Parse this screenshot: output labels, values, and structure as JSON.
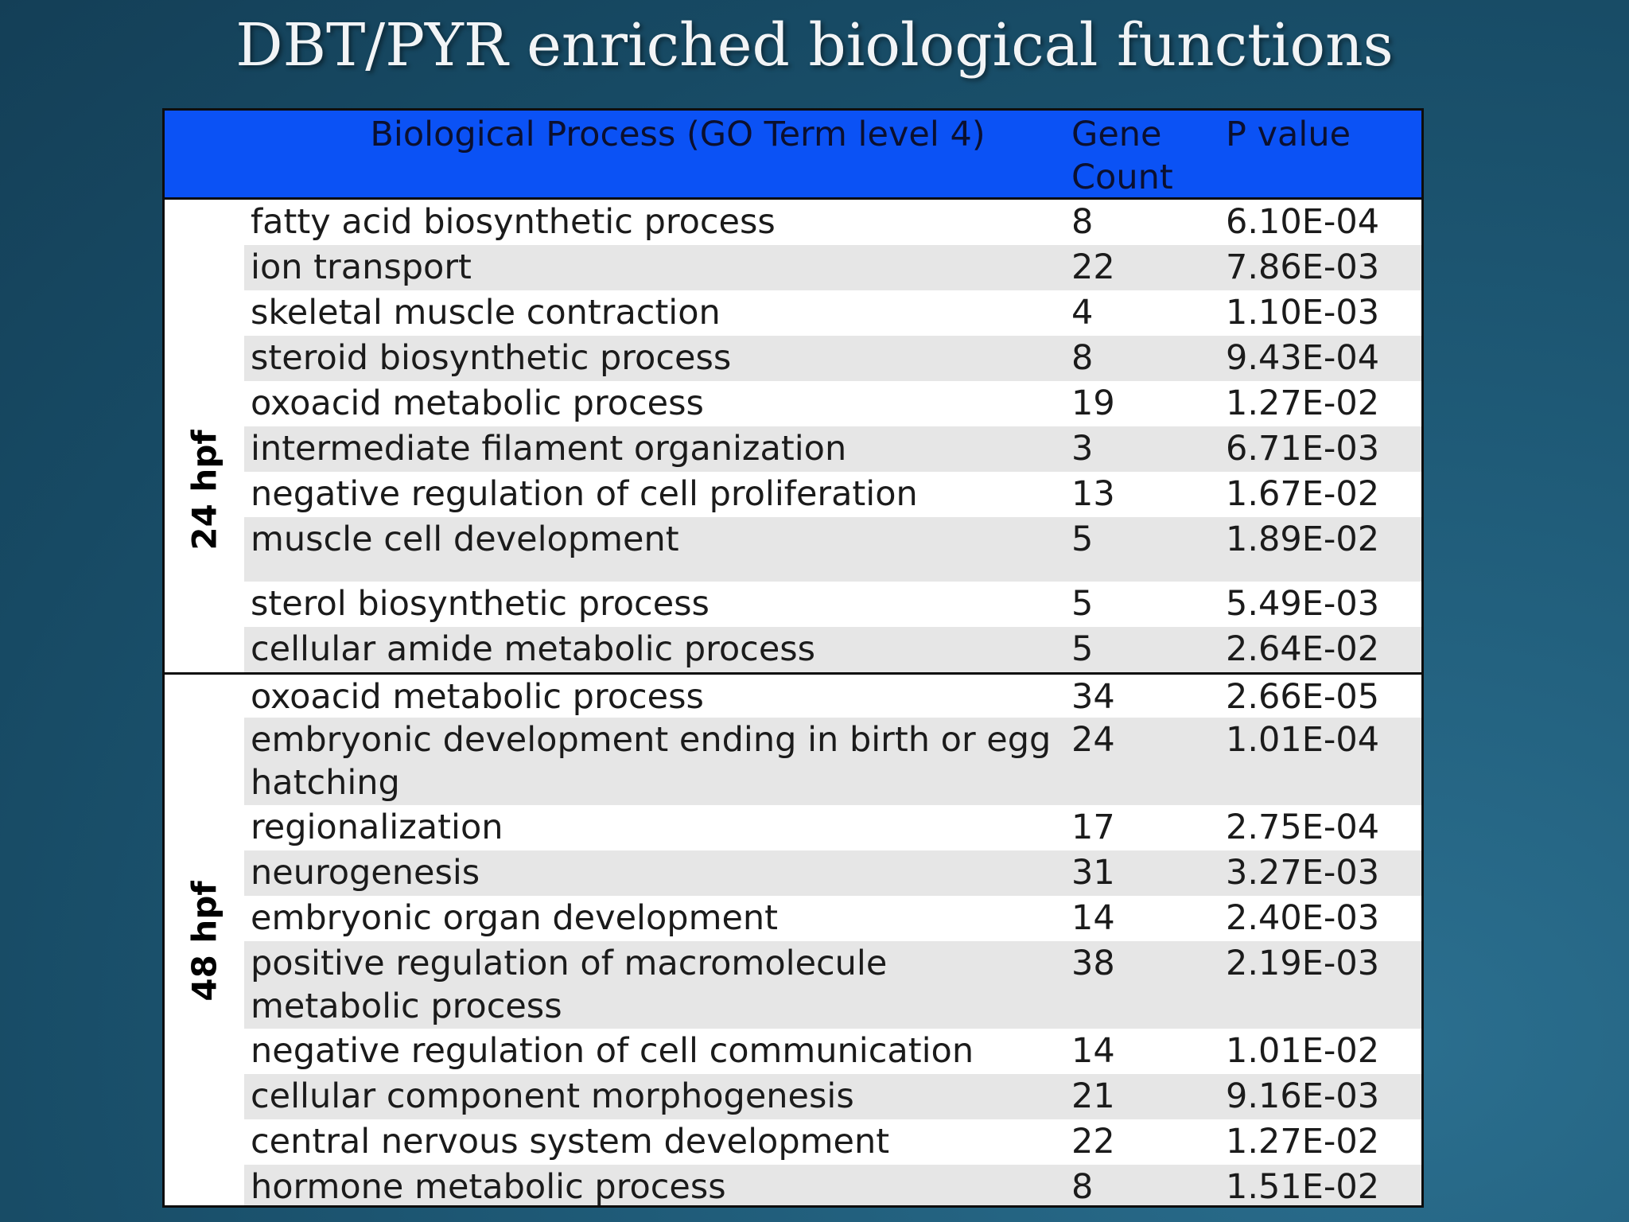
{
  "title": "DBT/PYR enriched biological functions",
  "table": {
    "headers": {
      "process": "Biological Process (GO Term level 4)",
      "count_line1": "Gene",
      "count_line2": "Count",
      "pvalue": "P value"
    },
    "groups": [
      {
        "label": "24 hpf",
        "rows": [
          {
            "process": "fatty acid biosynthetic process",
            "count": "8",
            "pvalue": "6.10E-04"
          },
          {
            "process": "ion transport",
            "count": "22",
            "pvalue": "7.86E-03"
          },
          {
            "process": "skeletal muscle contraction",
            "count": "4",
            "pvalue": "1.10E-03"
          },
          {
            "process": "steroid biosynthetic process",
            "count": "8",
            "pvalue": "9.43E-04"
          },
          {
            "process": "oxoacid metabolic process",
            "count": "19",
            "pvalue": "1.27E-02"
          },
          {
            "process": "intermediate filament organization",
            "count": "3",
            "pvalue": "6.71E-03"
          },
          {
            "process": "negative regulation of cell proliferation",
            "count": "13",
            "pvalue": "1.67E-02"
          },
          {
            "process": "muscle cell development",
            "count": "5",
            "pvalue": "1.89E-02"
          },
          {
            "process": "sterol biosynthetic process",
            "count": "5",
            "pvalue": "5.49E-03"
          },
          {
            "process": "cellular amide metabolic process",
            "count": "5",
            "pvalue": "2.64E-02"
          }
        ]
      },
      {
        "label": "48 hpf",
        "rows": [
          {
            "process": "oxoacid metabolic process",
            "count": "34",
            "pvalue": "2.66E-05"
          },
          {
            "process": "embryonic development ending in birth or egg hatching",
            "count": "24",
            "pvalue": "1.01E-04"
          },
          {
            "process": "regionalization",
            "count": "17",
            "pvalue": "2.75E-04"
          },
          {
            "process": "neurogenesis",
            "count": "31",
            "pvalue": "3.27E-03"
          },
          {
            "process": "embryonic organ development",
            "count": "14",
            "pvalue": "2.40E-03"
          },
          {
            "process": "positive regulation of macromolecule metabolic process",
            "count": "38",
            "pvalue": "2.19E-03"
          },
          {
            "process": "negative regulation of cell communication",
            "count": "14",
            "pvalue": "1.01E-02"
          },
          {
            "process": "cellular component morphogenesis",
            "count": "21",
            "pvalue": "9.16E-03"
          },
          {
            "process": "central nervous system development",
            "count": "22",
            "pvalue": "1.27E-02"
          },
          {
            "process": "hormone metabolic process",
            "count": "8",
            "pvalue": "1.51E-02"
          }
        ]
      }
    ]
  }
}
